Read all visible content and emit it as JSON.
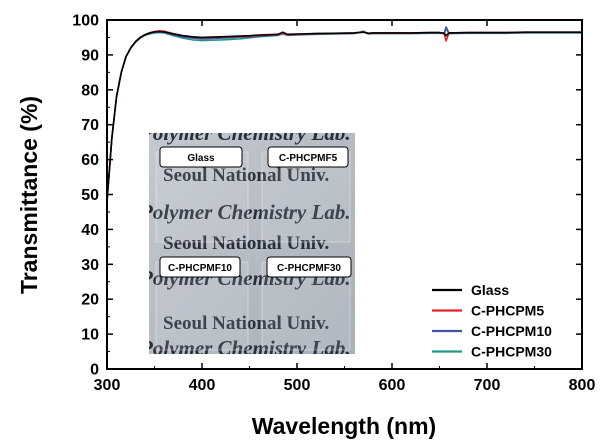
{
  "chart_data": {
    "type": "line",
    "xlabel": "Wavelength (nm)",
    "ylabel": "Transmittance (%)",
    "xlim": [
      300,
      800
    ],
    "ylim": [
      0,
      100
    ],
    "xticks": [
      300,
      400,
      500,
      600,
      700,
      800
    ],
    "yticks": [
      0,
      10,
      20,
      30,
      40,
      50,
      60,
      70,
      80,
      90,
      100
    ],
    "legend_position": "bottom-right",
    "series": [
      {
        "name": "Glass",
        "color": "#000000",
        "x": [
          300,
          305,
          310,
          315,
          320,
          325,
          330,
          335,
          340,
          345,
          350,
          355,
          360,
          370,
          380,
          390,
          400,
          410,
          420,
          430,
          440,
          450,
          460,
          470,
          480,
          485,
          490,
          500,
          520,
          540,
          560,
          570,
          575,
          580,
          600,
          620,
          640,
          650,
          655,
          657,
          660,
          680,
          700,
          720,
          740,
          760,
          780,
          800
        ],
        "y": [
          48,
          66,
          78,
          85,
          89.5,
          92,
          93.8,
          95,
          95.8,
          96.3,
          96.6,
          96.7,
          96.6,
          96,
          95.5,
          95.2,
          95,
          95.1,
          95.2,
          95.3,
          95.4,
          95.5,
          95.7,
          95.8,
          95.9,
          96.5,
          95.9,
          96,
          96.1,
          96.2,
          96.3,
          96.5,
          96.2,
          96.3,
          96.3,
          96.3,
          96.4,
          96.4,
          96.2,
          95.5,
          96.3,
          96.4,
          96.4,
          96.4,
          96.5,
          96.5,
          96.5,
          96.5
        ]
      },
      {
        "name": "C-PHCPM5",
        "color": "#e8232a",
        "x": [
          300,
          305,
          310,
          315,
          320,
          325,
          330,
          335,
          340,
          345,
          350,
          355,
          360,
          370,
          380,
          390,
          400,
          410,
          420,
          430,
          440,
          450,
          460,
          470,
          480,
          485,
          490,
          500,
          520,
          540,
          560,
          570,
          575,
          580,
          600,
          620,
          640,
          650,
          655,
          657,
          660,
          680,
          700,
          720,
          740,
          760,
          780,
          800
        ],
        "y": [
          48,
          66,
          78,
          85,
          89.5,
          92,
          93.8,
          95,
          95.8,
          96.4,
          96.7,
          96.9,
          96.8,
          96.1,
          95.5,
          95.1,
          94.9,
          95,
          95.1,
          95.2,
          95.3,
          95.4,
          95.6,
          95.7,
          95.8,
          96.3,
          95.8,
          95.9,
          96.1,
          96.2,
          96.3,
          96.6,
          96.2,
          96.3,
          96.3,
          96.3,
          96.4,
          96.4,
          96,
          94,
          96.3,
          96.4,
          96.4,
          96.4,
          96.5,
          96.5,
          96.5,
          96.5
        ]
      },
      {
        "name": "C-PHCPM10",
        "color": "#4350a8",
        "x": [
          300,
          305,
          310,
          315,
          320,
          325,
          330,
          335,
          340,
          345,
          350,
          355,
          360,
          370,
          380,
          390,
          400,
          410,
          420,
          430,
          440,
          450,
          460,
          470,
          480,
          485,
          490,
          500,
          520,
          540,
          560,
          570,
          575,
          580,
          600,
          620,
          640,
          650,
          655,
          657,
          660,
          680,
          700,
          720,
          740,
          760,
          780,
          800
        ],
        "y": [
          48,
          66,
          78,
          85,
          89.5,
          92,
          93.8,
          95,
          95.8,
          96.2,
          96.5,
          96.6,
          96.5,
          95.8,
          95.2,
          94.8,
          94.6,
          94.7,
          94.8,
          94.9,
          95.1,
          95.2,
          95.4,
          95.6,
          95.7,
          96.2,
          95.7,
          95.8,
          96,
          96.1,
          96.2,
          96.6,
          96.1,
          96.2,
          96.2,
          96.2,
          96.3,
          96.3,
          96.3,
          98,
          96.2,
          96.3,
          96.3,
          96.3,
          96.4,
          96.4,
          96.4,
          96.4
        ]
      },
      {
        "name": "C-PHCPM30",
        "color": "#1f9a8a",
        "x": [
          300,
          305,
          310,
          315,
          320,
          325,
          330,
          335,
          340,
          345,
          350,
          355,
          360,
          370,
          380,
          390,
          400,
          410,
          420,
          430,
          440,
          450,
          460,
          470,
          480,
          485,
          490,
          500,
          520,
          540,
          560,
          570,
          575,
          580,
          600,
          620,
          640,
          650,
          655,
          657,
          660,
          680,
          700,
          720,
          740,
          760,
          780,
          800
        ],
        "y": [
          48,
          66,
          78,
          85,
          89.5,
          92,
          93.6,
          94.8,
          95.6,
          96,
          96.3,
          96.4,
          96.3,
          95.5,
          94.8,
          94.3,
          94.1,
          94.2,
          94.3,
          94.4,
          94.6,
          94.9,
          95.2,
          95.4,
          95.6,
          96,
          95.6,
          95.7,
          95.9,
          96,
          96.1,
          96.8,
          96,
          96.1,
          96.1,
          96.1,
          96.2,
          96.2,
          96.2,
          97.5,
          96.1,
          96.2,
          96.2,
          96.2,
          96.3,
          96.3,
          96.3,
          96.3
        ]
      }
    ]
  },
  "inset_photo": {
    "lines": [
      {
        "text": "Polymer Chemistry Lab.",
        "style": "italic"
      },
      {
        "text": "Seoul National Univ.",
        "style": "bold"
      },
      {
        "text": "Polymer Chemistry Lab.",
        "style": "italic"
      },
      {
        "text": "Seoul National Univ.",
        "style": "bold"
      },
      {
        "text": "Polymer Chemistry Lab.",
        "style": "italic"
      },
      {
        "text": "Seoul National Univ.",
        "style": "bold"
      },
      {
        "text": "Polymer Chemistry Lab.",
        "style": "italic"
      }
    ],
    "sample_labels": [
      "Glass",
      "C-PHCPMF5",
      "C-PHCPMF10",
      "C-PHCPMF30"
    ]
  }
}
